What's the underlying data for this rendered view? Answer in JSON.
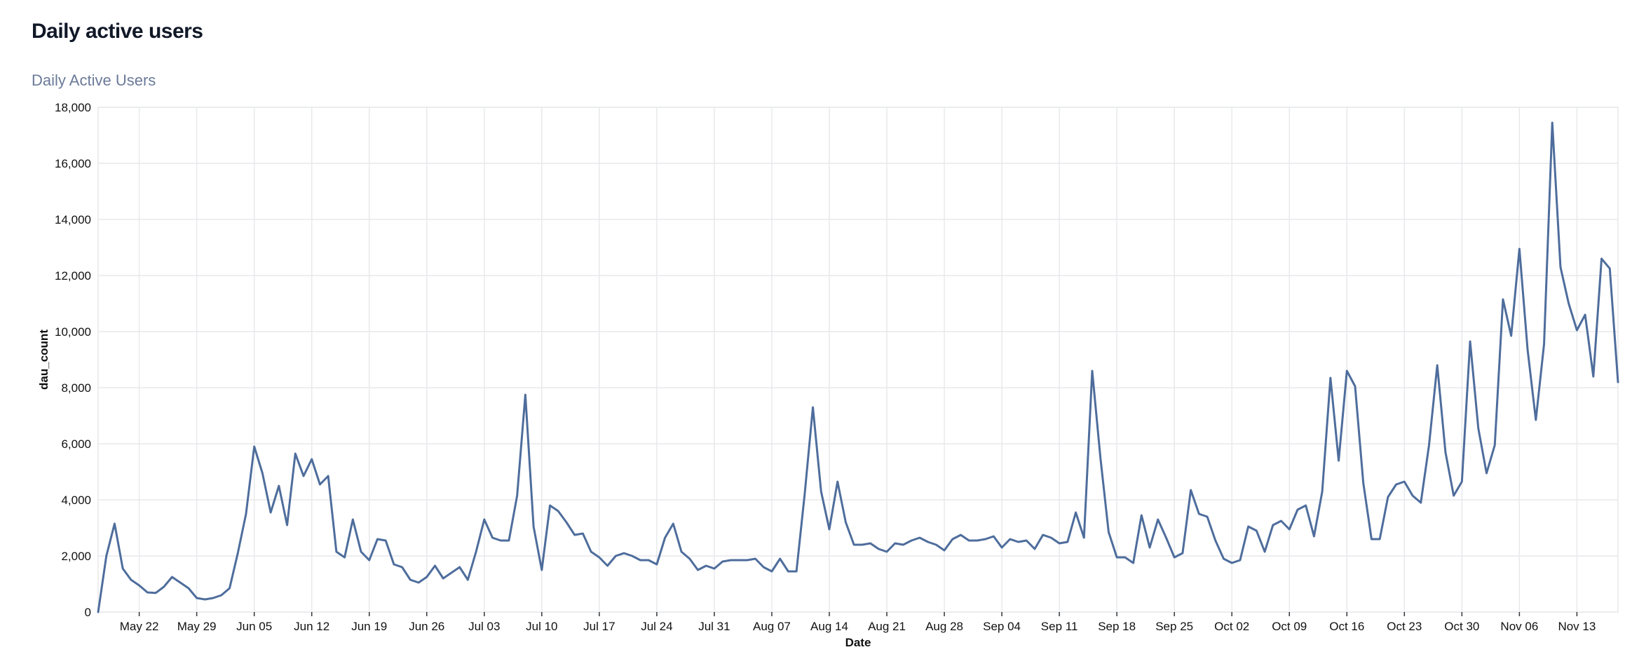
{
  "page": {
    "title": "Daily active users"
  },
  "chart_data": {
    "type": "line",
    "title": "Daily Active Users",
    "xlabel": "Date",
    "ylabel": "dau_count",
    "ylim": [
      0,
      18000
    ],
    "yticks": [
      0,
      2000,
      4000,
      6000,
      8000,
      10000,
      12000,
      14000,
      16000,
      18000
    ],
    "ytick_labels": [
      "0",
      "2,000",
      "4,000",
      "6,000",
      "8,000",
      "10,000",
      "12,000",
      "14,000",
      "16,000",
      "18,000"
    ],
    "start_date": "May 17",
    "xtick_labels": [
      "May 22",
      "May 29",
      "Jun 05",
      "Jun 12",
      "Jun 19",
      "Jun 26",
      "Jul 03",
      "Jul 10",
      "Jul 17",
      "Jul 24",
      "Jul 31",
      "Aug 07",
      "Aug 14",
      "Aug 21",
      "Aug 28",
      "Sep 04",
      "Sep 11",
      "Sep 18",
      "Sep 25",
      "Oct 02",
      "Oct 09",
      "Oct 16",
      "Oct 23",
      "Oct 30",
      "Nov 06",
      "Nov 13"
    ],
    "xtick_day_index": [
      5,
      12,
      19,
      26,
      33,
      40,
      47,
      54,
      61,
      68,
      75,
      82,
      89,
      96,
      103,
      110,
      117,
      124,
      131,
      138,
      145,
      152,
      159,
      166,
      173,
      180
    ],
    "grid": true,
    "series": [
      {
        "name": "dau_count",
        "color": "#4e6d9c",
        "values": [
          0,
          2000,
          3150,
          1550,
          1150,
          950,
          700,
          680,
          900,
          1250,
          1050,
          850,
          500,
          450,
          500,
          600,
          850,
          2100,
          3500,
          5900,
          4950,
          3550,
          4500,
          3100,
          5650,
          4850,
          5450,
          4550,
          4850,
          2150,
          1950,
          3300,
          2150,
          1850,
          2600,
          2550,
          1700,
          1600,
          1150,
          1050,
          1250,
          1650,
          1200,
          1400,
          1600,
          1150,
          2150,
          3300,
          2650,
          2550,
          2550,
          4150,
          7750,
          3050,
          1500,
          3800,
          3600,
          3200,
          2750,
          2800,
          2150,
          1950,
          1650,
          2000,
          2100,
          2000,
          1850,
          1850,
          1700,
          2650,
          3150,
          2150,
          1900,
          1500,
          1650,
          1550,
          1800,
          1850,
          1850,
          1850,
          1900,
          1600,
          1450,
          1900,
          1450,
          1450,
          4200,
          7300,
          4300,
          2950,
          4650,
          3200,
          2400,
          2400,
          2450,
          2250,
          2150,
          2450,
          2400,
          2550,
          2650,
          2500,
          2400,
          2200,
          2600,
          2750,
          2550,
          2550,
          2600,
          2700,
          2300,
          2600,
          2500,
          2550,
          2250,
          2750,
          2650,
          2450,
          2500,
          3550,
          2650,
          8600,
          5500,
          2850,
          1950,
          1950,
          1750,
          3450,
          2300,
          3300,
          2650,
          1950,
          2100,
          4350,
          3500,
          3400,
          2550,
          1900,
          1750,
          1850,
          3050,
          2900,
          2150,
          3100,
          3250,
          2950,
          3650,
          3800,
          2700,
          4300,
          8350,
          5400,
          8600,
          8050,
          4600,
          2600,
          2600,
          4100,
          4550,
          4650,
          4150,
          3900,
          5950,
          8800,
          5700,
          4150,
          4650,
          9650,
          6550,
          4950,
          5950,
          11150,
          9850,
          12950,
          9350,
          6850,
          9550,
          17450,
          12300,
          11000,
          10050,
          10600,
          8400,
          12600,
          12250,
          8200
        ]
      }
    ]
  }
}
